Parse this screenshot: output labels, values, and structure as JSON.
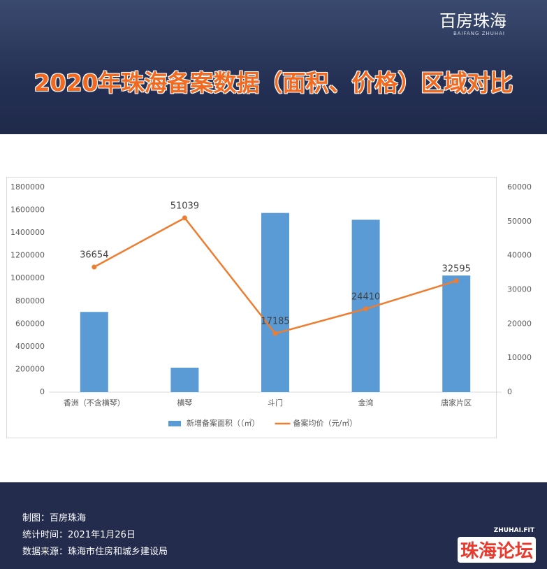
{
  "header": {
    "brand": "百房珠海",
    "brand_sub": "BAIFANG ZHUHAI",
    "title": "2020年珠海备案数据（面积、价格）区域对比"
  },
  "chart_data": {
    "type": "bar",
    "categories": [
      "香洲（不含横琴）",
      "横琴",
      "斗门",
      "金湾",
      "唐家片区"
    ],
    "series": [
      {
        "name": "新增备案面积（（㎡）",
        "color": "#5b9bd5",
        "type": "bar",
        "values": [
          705000,
          215000,
          1575000,
          1515000,
          1025000
        ]
      },
      {
        "name": "备案均价（元/㎡）",
        "color": "#ed7d31",
        "type": "line",
        "axis": "y2",
        "values": [
          36654,
          51039,
          17185,
          24410,
          32595
        ]
      }
    ],
    "ylim": [
      0,
      1800000
    ],
    "yticks": [
      0,
      200000,
      400000,
      600000,
      800000,
      1000000,
      1200000,
      1400000,
      1600000,
      1800000
    ],
    "y2lim": [
      0,
      60000
    ],
    "y2ticks": [
      0,
      10000,
      20000,
      30000,
      40000,
      50000,
      60000
    ],
    "legend": "bottom"
  },
  "footer": {
    "lines": [
      "制图：百房珠海",
      "统计时间：2021年1月26日",
      "数据来源：珠海市住房和城乡建设局"
    ],
    "logo": "ZHUHAI.FIT",
    "logo_text": "珠海论坛"
  }
}
